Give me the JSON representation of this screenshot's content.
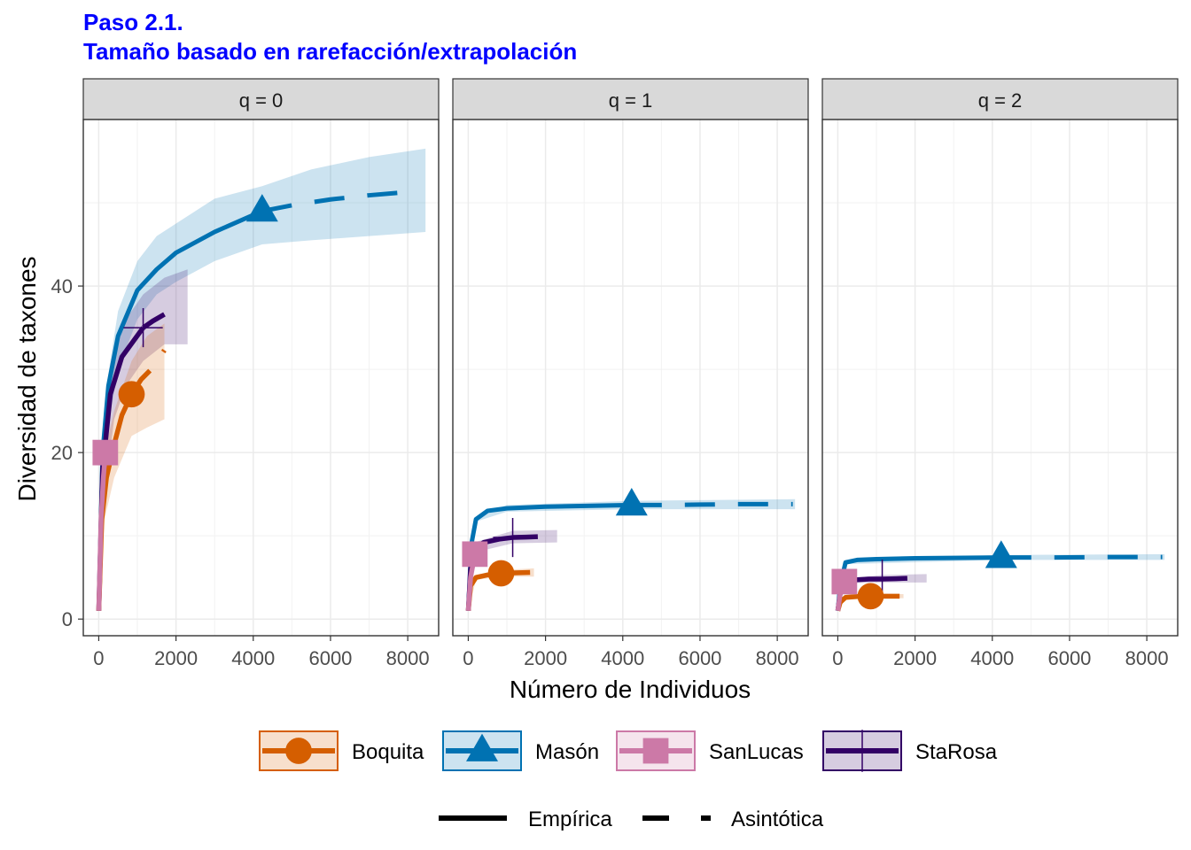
{
  "title": {
    "line1": "Paso 2.1.",
    "line2": "Tamaño basado en rarefacción/extrapolación"
  },
  "chart_data": {
    "type": "line",
    "xlabel": "Número de Individuos",
    "ylabel": "Diversidad de taxones",
    "xlim": [
      -400,
      8800
    ],
    "ylim": [
      -2,
      60
    ],
    "x_ticks": [
      0,
      2000,
      4000,
      6000,
      8000
    ],
    "y_ticks": [
      0,
      20,
      40
    ],
    "grid": true,
    "legend_position": "bottom",
    "line_types": [
      {
        "name": "Empírica",
        "style": "solid"
      },
      {
        "name": "Asintótica",
        "style": "dashed"
      }
    ],
    "series": [
      {
        "name": "Boquita",
        "color": "#D55E00",
        "marker": "circle",
        "sample_size": 850
      },
      {
        "name": "Masón",
        "color": "#0072B2",
        "marker": "triangle",
        "sample_size": 4230
      },
      {
        "name": "SanLucas",
        "color": "#CC79A7",
        "marker": "square",
        "sample_size": 170
      },
      {
        "name": "StaRosa",
        "color": "#330066",
        "marker": "cross",
        "sample_size": 1150
      }
    ],
    "panels": [
      {
        "label": "q = 0",
        "curves": [
          {
            "series": "Masón",
            "rare": [
              [
                1,
                1
              ],
              [
                100,
                20
              ],
              [
                250,
                28
              ],
              [
                500,
                34
              ],
              [
                1000,
                39.5
              ],
              [
                1500,
                42
              ],
              [
                2000,
                44
              ],
              [
                3000,
                46.5
              ],
              [
                4230,
                49
              ]
            ],
            "extra": [
              [
                4230,
                49
              ],
              [
                5000,
                49.7
              ],
              [
                6000,
                50.4
              ],
              [
                7000,
                50.9
              ],
              [
                8000,
                51.3
              ]
            ],
            "ribbon": [
              [
                0,
                1,
                1
              ],
              [
                200,
                22,
                28
              ],
              [
                500,
                30,
                37
              ],
              [
                1000,
                36,
                43
              ],
              [
                1500,
                39,
                46
              ],
              [
                2000,
                40.5,
                47.5
              ],
              [
                3000,
                43,
                50.5
              ],
              [
                4230,
                45,
                52
              ],
              [
                5500,
                45.5,
                54
              ],
              [
                7000,
                46,
                55.5
              ],
              [
                8460,
                46.5,
                56.5
              ]
            ]
          },
          {
            "series": "StaRosa",
            "rare": [
              [
                1,
                1
              ],
              [
                100,
                18
              ],
              [
                300,
                27
              ],
              [
                600,
                31.5
              ],
              [
                1150,
                35
              ]
            ],
            "extra": [
              [
                1150,
                35
              ],
              [
                1400,
                35.8
              ],
              [
                1700,
                36.6
              ]
            ],
            "ribbon": [
              [
                0,
                1,
                1
              ],
              [
                150,
                15,
                24
              ],
              [
                400,
                24,
                32
              ],
              [
                700,
                28,
                36
              ],
              [
                1150,
                31,
                39
              ],
              [
                1700,
                33,
                41
              ],
              [
                2300,
                33,
                42
              ]
            ]
          },
          {
            "series": "Boquita",
            "rare": [
              [
                1,
                1
              ],
              [
                80,
                12
              ],
              [
                200,
                17
              ],
              [
                400,
                21
              ],
              [
                600,
                24.5
              ],
              [
                850,
                27
              ]
            ],
            "extra": [
              [
                850,
                27
              ],
              [
                1100,
                28.8
              ],
              [
                1400,
                30.2
              ],
              [
                1700,
                32.3
              ]
            ],
            "ribbon": [
              [
                0,
                1,
                1
              ],
              [
                150,
                12,
                20
              ],
              [
                400,
                17,
                25
              ],
              [
                850,
                22,
                31
              ],
              [
                1250,
                23,
                34
              ],
              [
                1700,
                24,
                35.5
              ]
            ]
          },
          {
            "series": "SanLucas",
            "rare": [
              [
                1,
                1
              ],
              [
                60,
                12
              ],
              [
                120,
                17
              ],
              [
                170,
                20
              ]
            ],
            "extra": [],
            "ribbon": [
              [
                0,
                1,
                1
              ],
              [
                80,
                13,
                19
              ],
              [
                170,
                17,
                23
              ]
            ]
          }
        ]
      },
      {
        "label": "q = 1",
        "curves": [
          {
            "series": "Masón",
            "rare": [
              [
                1,
                1
              ],
              [
                80,
                9
              ],
              [
                200,
                12
              ],
              [
                500,
                13
              ],
              [
                1000,
                13.3
              ],
              [
                2000,
                13.5
              ],
              [
                4230,
                13.7
              ]
            ],
            "extra": [
              [
                4230,
                13.7
              ],
              [
                5000,
                13.7
              ],
              [
                6000,
                13.75
              ],
              [
                7000,
                13.8
              ],
              [
                8400,
                13.8
              ]
            ],
            "ribbon": [
              [
                0,
                1,
                1
              ],
              [
                200,
                11.7,
                12.3
              ],
              [
                1000,
                12.9,
                13.7
              ],
              [
                4230,
                13.2,
                14.2
              ],
              [
                8460,
                13.2,
                14.4
              ]
            ]
          },
          {
            "series": "StaRosa",
            "rare": [
              [
                1,
                1
              ],
              [
                60,
                6
              ],
              [
                150,
                8.5
              ],
              [
                400,
                9.2
              ],
              [
                800,
                9.6
              ],
              [
                1150,
                9.8
              ]
            ],
            "extra": [
              [
                1150,
                9.8
              ],
              [
                1500,
                9.85
              ],
              [
                1800,
                9.9
              ]
            ],
            "ribbon": [
              [
                0,
                1,
                1
              ],
              [
                150,
                8,
                9.2
              ],
              [
                1150,
                9.1,
                10.6
              ],
              [
                2300,
                9.2,
                10.7
              ]
            ]
          },
          {
            "series": "Boquita",
            "rare": [
              [
                1,
                1
              ],
              [
                60,
                4
              ],
              [
                200,
                5
              ],
              [
                500,
                5.3
              ],
              [
                850,
                5.5
              ]
            ],
            "extra": [
              [
                850,
                5.5
              ],
              [
                1200,
                5.55
              ],
              [
                1600,
                5.6
              ]
            ],
            "ribbon": [
              [
                0,
                1,
                1
              ],
              [
                200,
                4.7,
                5.3
              ],
              [
                850,
                5.1,
                5.9
              ],
              [
                1700,
                5.1,
                6.1
              ]
            ]
          },
          {
            "series": "SanLucas",
            "rare": [
              [
                1,
                1
              ],
              [
                60,
                5
              ],
              [
                170,
                7.8
              ]
            ],
            "extra": [],
            "ribbon": [
              [
                0,
                1,
                1
              ],
              [
                170,
                7.1,
                8.5
              ]
            ]
          }
        ]
      },
      {
        "label": "q = 2",
        "curves": [
          {
            "series": "Masón",
            "rare": [
              [
                1,
                1
              ],
              [
                60,
                4
              ],
              [
                200,
                6.8
              ],
              [
                500,
                7.1
              ],
              [
                1000,
                7.2
              ],
              [
                2000,
                7.3
              ],
              [
                4230,
                7.4
              ]
            ],
            "extra": [
              [
                4230,
                7.4
              ],
              [
                5500,
                7.4
              ],
              [
                7000,
                7.45
              ],
              [
                8400,
                7.45
              ]
            ],
            "ribbon": [
              [
                0,
                1,
                1
              ],
              [
                200,
                6.6,
                7.0
              ],
              [
                4230,
                7.1,
                7.7
              ],
              [
                8460,
                7.1,
                7.8
              ]
            ]
          },
          {
            "series": "StaRosa",
            "rare": [
              [
                1,
                1
              ],
              [
                60,
                3
              ],
              [
                150,
                4.5
              ],
              [
                400,
                4.7
              ],
              [
                800,
                4.8
              ],
              [
                1150,
                4.8
              ]
            ],
            "extra": [
              [
                1150,
                4.8
              ],
              [
                1500,
                4.85
              ],
              [
                1800,
                4.9
              ]
            ],
            "ribbon": [
              [
                0,
                1,
                1
              ],
              [
                150,
                4.3,
                4.8
              ],
              [
                1150,
                4.4,
                5.3
              ],
              [
                2300,
                4.4,
                5.4
              ]
            ]
          },
          {
            "series": "Boquita",
            "rare": [
              [
                1,
                1
              ],
              [
                60,
                2
              ],
              [
                200,
                2.6
              ],
              [
                500,
                2.7
              ],
              [
                850,
                2.75
              ]
            ],
            "extra": [
              [
                850,
                2.75
              ],
              [
                1200,
                2.75
              ],
              [
                1600,
                2.75
              ]
            ],
            "ribbon": [
              [
                0,
                1,
                1
              ],
              [
                200,
                2.4,
                2.9
              ],
              [
                850,
                2.5,
                3.0
              ],
              [
                1700,
                2.5,
                3.0
              ]
            ]
          },
          {
            "series": "SanLucas",
            "rare": [
              [
                1,
                1
              ],
              [
                60,
                3
              ],
              [
                170,
                4.5
              ]
            ],
            "extra": [],
            "ribbon": [
              [
                0,
                1,
                1
              ],
              [
                170,
                4.0,
                5.0
              ]
            ]
          }
        ]
      }
    ]
  }
}
